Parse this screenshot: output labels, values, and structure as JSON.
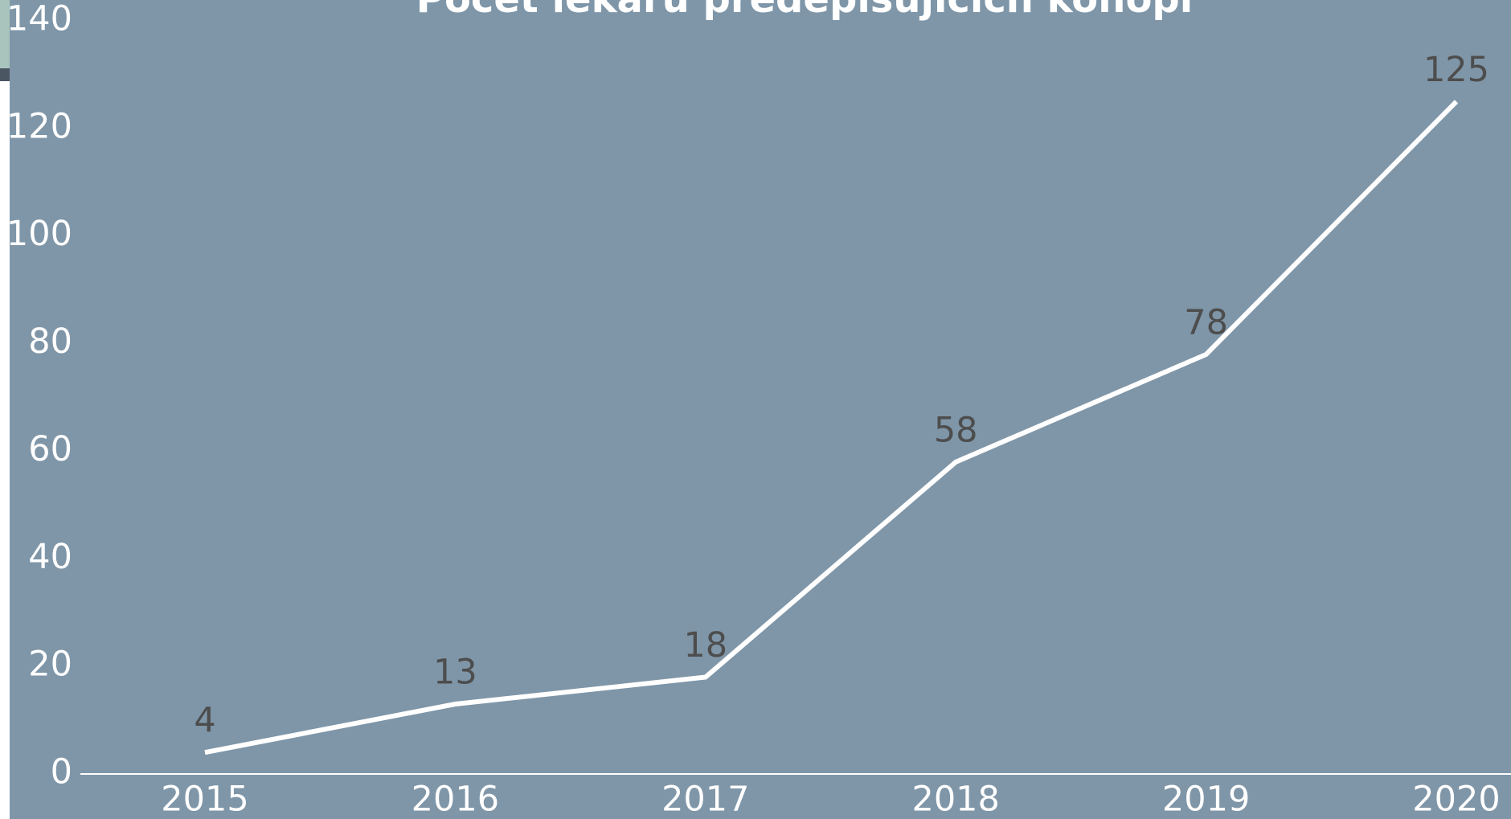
{
  "chart_data": {
    "type": "line",
    "title": "Počet lékařů předepisujících konopí",
    "categories": [
      "2015",
      "2016",
      "2017",
      "2018",
      "2019",
      "2020"
    ],
    "values": [
      4,
      13,
      18,
      58,
      78,
      125
    ],
    "color": "#ffffff",
    "label_color": "#4d4d4d",
    "background": "#7f96a8",
    "ylim": [
      0,
      140
    ],
    "yticks": [
      0,
      20,
      40,
      60,
      80,
      100,
      120,
      140
    ],
    "grid": false
  }
}
